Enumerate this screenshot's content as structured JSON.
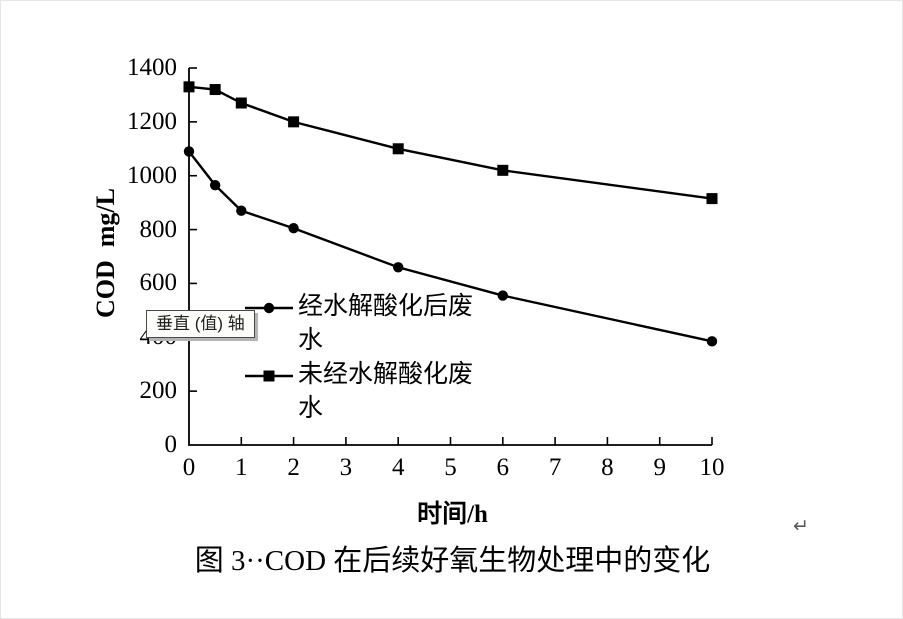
{
  "tooltip": {
    "label": "垂直 (值) 轴"
  },
  "caption": "图 3··COD 在后续好氧生物处理中的变化",
  "return_mark": "↵",
  "chart_data": {
    "type": "line",
    "title": "",
    "xlabel": "时间/h",
    "ylabel": "COD  mg/L",
    "xlim": [
      0,
      10
    ],
    "ylim": [
      0,
      1400
    ],
    "x_ticks": [
      0,
      1,
      2,
      3,
      4,
      5,
      6,
      7,
      8,
      9,
      10
    ],
    "y_ticks": [
      0,
      200,
      400,
      600,
      800,
      1000,
      1200,
      1400
    ],
    "x": [
      0,
      0.5,
      1,
      2,
      4,
      6,
      10
    ],
    "series": [
      {
        "name": "经水解酸化后废水",
        "marker": "circle",
        "values": [
          1090,
          965,
          870,
          805,
          660,
          555,
          385
        ]
      },
      {
        "name": "未经水解酸化废水",
        "marker": "square",
        "values": [
          1330,
          1320,
          1270,
          1200,
          1100,
          1020,
          915
        ]
      }
    ],
    "line_color": "#000000",
    "grid": false,
    "legend_position": "inside-left"
  }
}
